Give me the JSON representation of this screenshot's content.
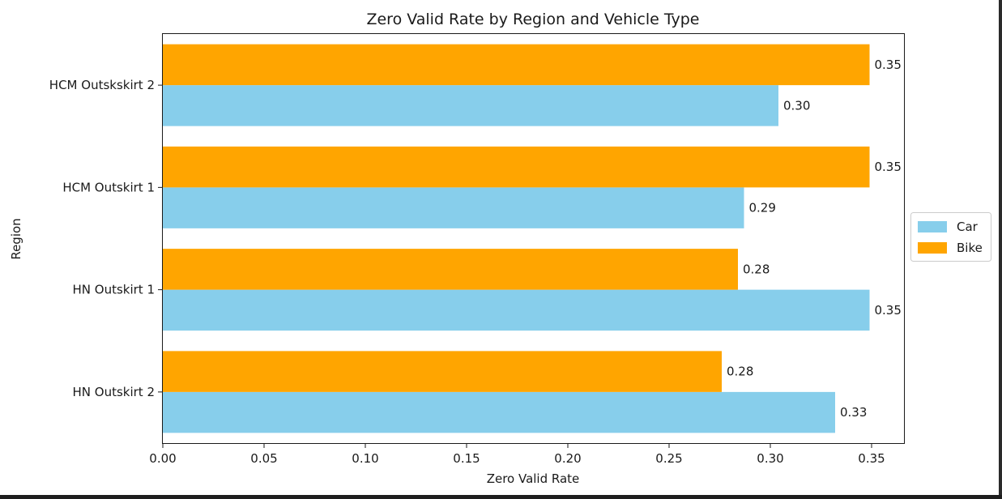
{
  "chart_data": {
    "type": "bar",
    "orientation": "horizontal",
    "title": "Zero Valid Rate by Region and Vehicle Type",
    "xlabel": "Zero Valid Rate",
    "ylabel": "Region",
    "categories": [
      "HN Outskirt 2",
      "HN Outskirt 1",
      "HCM Outskirt 1",
      "HCM Outskskirt 2"
    ],
    "series": [
      {
        "name": "Car",
        "color": "#87ceeb",
        "values": [
          0.332,
          0.349,
          0.287,
          0.304
        ],
        "labels": [
          "0.33",
          "0.35",
          "0.29",
          "0.30"
        ]
      },
      {
        "name": "Bike",
        "color": "#ffa500",
        "values": [
          0.276,
          0.284,
          0.349,
          0.349
        ],
        "labels": [
          "0.28",
          "0.28",
          "0.35",
          "0.35"
        ]
      }
    ],
    "xlim": [
      0,
      0.366
    ],
    "xticks": [
      0,
      0.05,
      0.1,
      0.15,
      0.2,
      0.25,
      0.3,
      0.35
    ],
    "xtick_labels": [
      "0.00",
      "0.05",
      "0.10",
      "0.15",
      "0.20",
      "0.25",
      "0.30",
      "0.35"
    ],
    "grid": false,
    "legend_position": "center-right, outside plot"
  }
}
